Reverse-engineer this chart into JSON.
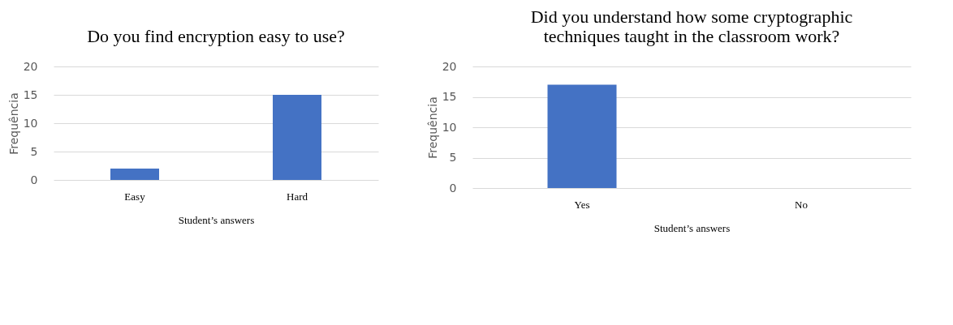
{
  "chart_data": [
    {
      "type": "bar",
      "title": "Do you find encryption easy to use?",
      "categories": [
        "Easy",
        "Hard"
      ],
      "values": [
        2,
        15
      ],
      "color": "#4472c4",
      "xlabel": "Student’s answers",
      "ylabel": "Frequência",
      "ylim": [
        0,
        20
      ],
      "yticks": [
        0,
        5,
        10,
        15,
        20
      ],
      "grid": "y"
    },
    {
      "type": "bar",
      "title": "Did you understand how some cryptographic techniques taught in the classroom work?",
      "categories": [
        "Yes",
        "No"
      ],
      "values": [
        17,
        0
      ],
      "color": "#4472c4",
      "xlabel": "Student’s answers",
      "ylabel": "Frequência",
      "ylim": [
        0,
        20
      ],
      "yticks": [
        0,
        5,
        10,
        15,
        20
      ],
      "grid": "y"
    }
  ]
}
